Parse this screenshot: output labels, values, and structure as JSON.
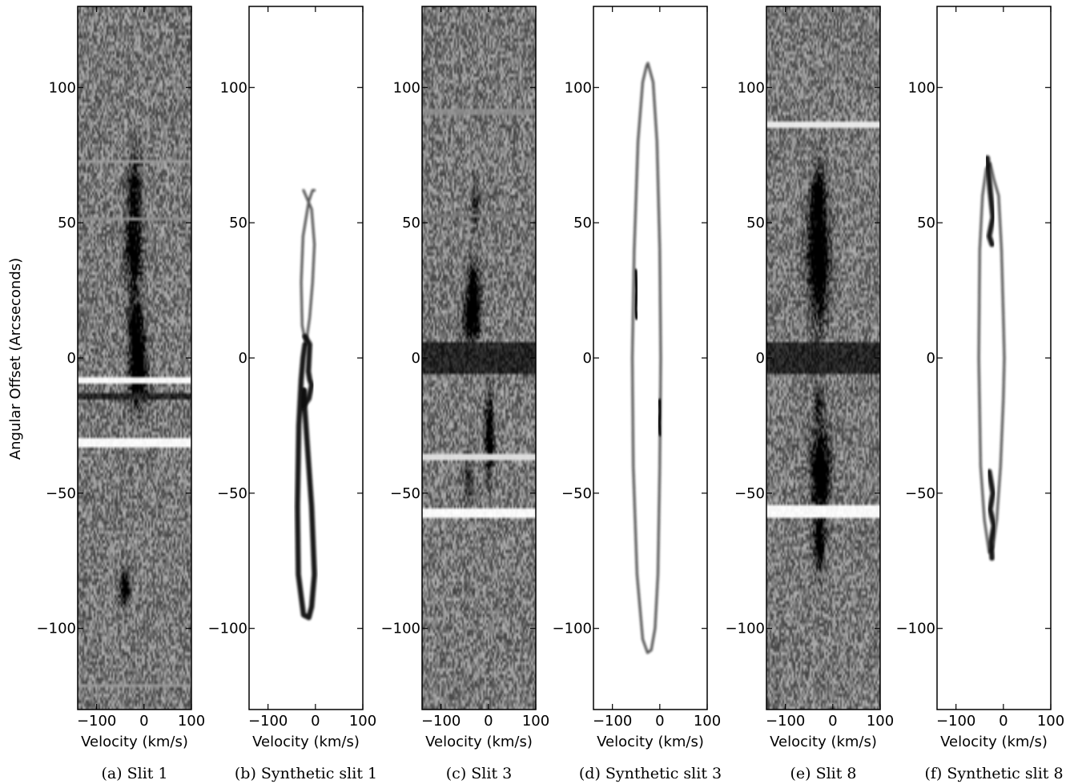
{
  "figure": {
    "ylabel": "Angular Offset (Arcseconds)"
  },
  "chart_data": [
    {
      "type": "heatmap",
      "title": "(a) Slit 1",
      "xlabel": "Velocity (km/s)",
      "ylabel": "Angular Offset (Arcseconds)",
      "xlim": [
        -140,
        100
      ],
      "ylim": [
        -130,
        130
      ],
      "xticks": [
        -100,
        0,
        100
      ],
      "yticks": [
        -100,
        -50,
        0,
        50,
        100
      ],
      "features": {
        "blobs": [
          {
            "x": -20,
            "y": 60,
            "rx": 14,
            "ry": 15,
            "strength": 0.6
          },
          {
            "x": -22,
            "y": 38,
            "rx": 16,
            "ry": 13,
            "strength": 0.7
          },
          {
            "x": -18,
            "y": 12,
            "rx": 14,
            "ry": 10,
            "strength": 0.7
          },
          {
            "x": -12,
            "y": -5,
            "rx": 18,
            "ry": 12,
            "strength": 0.9
          },
          {
            "x": -40,
            "y": -85,
            "rx": 10,
            "ry": 6,
            "strength": 0.8
          }
        ],
        "bands": [
          {
            "y": -14,
            "halfwidth": 1.0,
            "value": 0.95
          },
          {
            "y": 51,
            "halfwidth": 0.6,
            "value": 0.5
          },
          {
            "y": 73,
            "halfwidth": 0.5,
            "value": 0.45
          },
          {
            "y": -121,
            "halfwidth": 0.5,
            "value": 0.45
          },
          {
            "y": -31,
            "halfwidth": 2.0,
            "value": 0.0
          },
          {
            "y": -8,
            "halfwidth": 1.0,
            "value": 0.0
          }
        ]
      }
    },
    {
      "type": "line",
      "title": "(b) Synthetic slit 1",
      "xlabel": "Velocity (km/s)",
      "ylabel": "",
      "xlim": [
        -140,
        100
      ],
      "ylim": [
        -130,
        130
      ],
      "xticks": [
        -100,
        0,
        100
      ],
      "yticks": [
        -100,
        -50,
        0,
        50,
        100
      ],
      "series": [
        {
          "x": [
            -25,
            -8,
            -2,
            -6,
            -12,
            -20,
            -28,
            -30,
            -26,
            -14,
            -6,
            -2
          ],
          "y": [
            62,
            55,
            42,
            28,
            15,
            5,
            12,
            28,
            45,
            58,
            62,
            62
          ]
        },
        {
          "x": [
            -25,
            -18,
            -8,
            -2,
            -8,
            -14,
            -25,
            -36,
            -38,
            -35,
            -30,
            -26,
            -22
          ],
          "y": [
            -12,
            -30,
            -55,
            -80,
            -92,
            -96,
            -95,
            -80,
            -55,
            -25,
            -8,
            0,
            5
          ]
        },
        {
          "x": [
            -22,
            -12,
            -15,
            -12,
            -8,
            -14,
            -26,
            -24
          ],
          "y": [
            8,
            5,
            -5,
            -8,
            -10,
            -15,
            -18,
            -12
          ]
        }
      ]
    },
    {
      "type": "heatmap",
      "title": "(c) Slit 3",
      "xlabel": "Velocity (km/s)",
      "ylabel": "",
      "xlim": [
        -140,
        100
      ],
      "ylim": [
        -130,
        130
      ],
      "xticks": [
        -100,
        0,
        100
      ],
      "yticks": [
        -100,
        -50,
        0,
        50,
        100
      ],
      "features": {
        "blobs": [
          {
            "x": -35,
            "y": 15,
            "rx": 16,
            "ry": 8,
            "strength": 1.0
          },
          {
            "x": -32,
            "y": 28,
            "rx": 12,
            "ry": 8,
            "strength": 0.6
          },
          {
            "x": -28,
            "y": 58,
            "rx": 8,
            "ry": 8,
            "strength": 0.45
          },
          {
            "x": 2,
            "y": -28,
            "rx": 8,
            "ry": 14,
            "strength": 0.9
          },
          {
            "x": -42,
            "y": -45,
            "rx": 10,
            "ry": 8,
            "strength": 0.4
          }
        ],
        "bands": [
          {
            "y": 0,
            "halfwidth": 6.0,
            "value": 0.95
          },
          {
            "y": 91,
            "halfwidth": 0.6,
            "value": 0.5
          },
          {
            "y": 53,
            "halfwidth": 0.6,
            "value": 0.6
          },
          {
            "y": -57,
            "halfwidth": 2.0,
            "value": 0.0
          },
          {
            "y": -37,
            "halfwidth": 1.0,
            "value": 0.15
          }
        ]
      }
    },
    {
      "type": "line",
      "title": "(d) Synthetic slit 3",
      "xlabel": "Velocity (km/s)",
      "ylabel": "",
      "xlim": [
        -140,
        100
      ],
      "ylim": [
        -130,
        130
      ],
      "xticks": [
        -100,
        0,
        100
      ],
      "yticks": [
        -100,
        -50,
        0,
        50,
        100
      ],
      "series": [
        {
          "x": [
            -25,
            -14,
            -6,
            0,
            2,
            0,
            -4,
            -10,
            -18,
            -26,
            -36,
            -48,
            -56,
            -58,
            -54,
            -46,
            -36,
            -28,
            -25
          ],
          "y": [
            109,
            102,
            80,
            40,
            0,
            -40,
            -80,
            -100,
            -108,
            -109,
            -104,
            -80,
            -40,
            0,
            40,
            80,
            102,
            108,
            109
          ]
        },
        {
          "x": [
            -52,
            -48,
            -52,
            -48
          ],
          "y": [
            32,
            25,
            18,
            15
          ]
        },
        {
          "x": [
            0,
            2,
            -2,
            2
          ],
          "y": [
            -16,
            -20,
            -24,
            -28
          ]
        }
      ]
    },
    {
      "type": "heatmap",
      "title": "(e) Slit 8",
      "xlabel": "Velocity (km/s)",
      "ylabel": "",
      "xlim": [
        -140,
        100
      ],
      "ylim": [
        -130,
        130
      ],
      "xticks": [
        -100,
        0,
        100
      ],
      "yticks": [
        -100,
        -50,
        0,
        50,
        100
      ],
      "features": {
        "blobs": [
          {
            "x": -30,
            "y": 38,
            "rx": 20,
            "ry": 22,
            "strength": 1.0
          },
          {
            "x": -32,
            "y": 60,
            "rx": 12,
            "ry": 8,
            "strength": 0.6
          },
          {
            "x": -26,
            "y": -42,
            "rx": 18,
            "ry": 14,
            "strength": 1.0
          },
          {
            "x": -28,
            "y": -68,
            "rx": 12,
            "ry": 10,
            "strength": 0.8
          },
          {
            "x": -30,
            "y": -18,
            "rx": 10,
            "ry": 8,
            "strength": 0.4
          }
        ],
        "bands": [
          {
            "y": 0,
            "halfwidth": 6.0,
            "value": 0.95
          },
          {
            "y": -57,
            "halfwidth": 2.2,
            "value": 0.0
          },
          {
            "y": 86,
            "halfwidth": 1.2,
            "value": 0.1
          }
        ]
      }
    },
    {
      "type": "line",
      "title": "(f) Synthetic slit 8",
      "xlabel": "Velocity (km/s)",
      "ylabel": "",
      "xlim": [
        -140,
        100
      ],
      "ylim": [
        -130,
        130
      ],
      "xticks": [
        -100,
        0,
        100
      ],
      "yticks": [
        -100,
        -50,
        0,
        50,
        100
      ],
      "series": [
        {
          "x": [
            -20,
            -10,
            -4,
            0,
            2,
            0,
            -6,
            -14,
            -22,
            -30,
            -40,
            -48,
            -52,
            -50,
            -44,
            -36,
            -28,
            -20
          ],
          "y": [
            66,
            60,
            40,
            15,
            0,
            -15,
            -40,
            -60,
            -70,
            -72,
            -60,
            -40,
            0,
            40,
            60,
            70,
            72,
            66
          ]
        },
        {
          "x": [
            -34,
            -28,
            -22,
            -30,
            -24
          ],
          "y": [
            74,
            62,
            52,
            45,
            42
          ]
        },
        {
          "x": [
            -30,
            -22,
            -28,
            -20,
            -26,
            -24
          ],
          "y": [
            -42,
            -50,
            -56,
            -62,
            -68,
            -74
          ]
        }
      ]
    }
  ]
}
